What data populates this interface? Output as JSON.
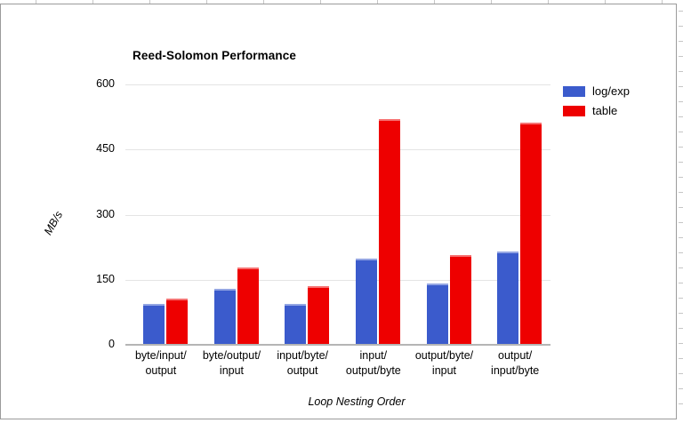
{
  "chart_data": {
    "type": "bar",
    "title": "Reed-Solomon Performance",
    "xlabel": "Loop Nesting Order",
    "ylabel": "MB/s",
    "categories": [
      "byte/input/output",
      "byte/output/input",
      "input/byte/output",
      "input/output/byte",
      "output/byte/input",
      "output/input/byte"
    ],
    "category_lines": [
      [
        "byte/input/",
        "output"
      ],
      [
        "byte/output/",
        "input"
      ],
      [
        "input/byte/",
        "output"
      ],
      [
        "input/",
        "output/byte"
      ],
      [
        "output/byte/",
        "input"
      ],
      [
        "output/",
        "input/byte"
      ]
    ],
    "series": [
      {
        "name": "log/exp",
        "color": "#3b5bcc",
        "values": [
          93,
          127,
          92,
          196,
          140,
          213
        ]
      },
      {
        "name": "table",
        "color": "#ee0000",
        "values": [
          105,
          177,
          134,
          519,
          204,
          510
        ]
      }
    ],
    "ylim": [
      0,
      600
    ],
    "yticks": [
      0,
      150,
      300,
      450,
      600
    ],
    "grid": true,
    "legend_position": "right",
    "colors": {
      "gridline": "#e4e4e4",
      "axis_line": "#b5b5b5",
      "frame_border": "#9b9b9b",
      "text": "#000000"
    }
  }
}
